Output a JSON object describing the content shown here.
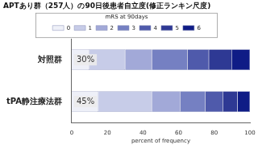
{
  "chart_data": {
    "type": "bar",
    "orientation": "horizontal",
    "stacked": true,
    "title": "APTあり群（257人）の90日後患者自立度(修正ランキン尺度)",
    "legend": "top",
    "legend_title": "mRS at 90days",
    "categories": [
      "対照群",
      "tPA静注療法群"
    ],
    "series": [
      {
        "name": "0",
        "color": "#eef0f8",
        "values": [
          10,
          15
        ]
      },
      {
        "name": "1",
        "color": "#c7cce8",
        "values": [
          20,
          30
        ]
      },
      {
        "name": "2",
        "color": "#a2a9d8",
        "values": [
          15,
          16
        ]
      },
      {
        "name": "3",
        "color": "#7580c2",
        "values": [
          20,
          14
        ]
      },
      {
        "name": "4",
        "color": "#4f5aab",
        "values": [
          12,
          10
        ]
      },
      {
        "name": "5",
        "color": "#2e3994",
        "values": [
          13,
          8
        ]
      },
      {
        "name": "6",
        "color": "#0f1c86",
        "values": [
          10,
          7
        ]
      }
    ],
    "xlim": [
      0,
      100
    ],
    "xticks": [
      0,
      20,
      40,
      60,
      80,
      100
    ],
    "x_label": "percent of frequency",
    "grid": false,
    "annotations": [
      {
        "category": "対照群",
        "text": "30%"
      },
      {
        "category": "tPA静注療法群",
        "text": "45%"
      }
    ]
  }
}
